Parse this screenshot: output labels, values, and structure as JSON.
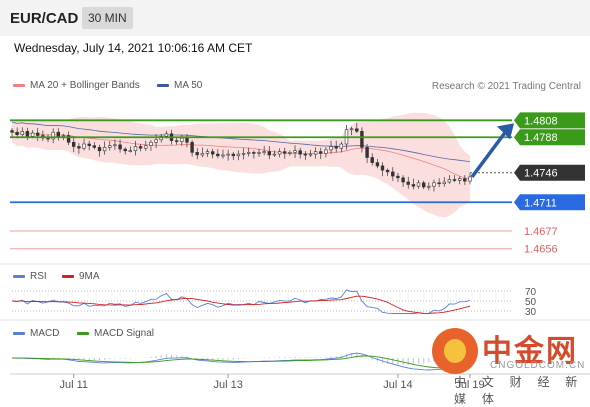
{
  "header": {
    "pair": "EUR/CAD",
    "timeframe": "30 MIN"
  },
  "datetime": "Wednesday, July 14, 2021 10:06:16 AM CET",
  "credit": "Research © 2021 Trading Central",
  "watermark": {
    "title": "中金网",
    "url": "CNGOLDCOM.CN",
    "sub": "中 文 财 经 新 媒 体"
  },
  "colors": {
    "resistance": "#3a9a1a",
    "support": "#2a6ae0",
    "pivot": "#333333",
    "lower": "#e06060",
    "bollinger": "#f6b8b8",
    "ma20": "#f08080",
    "ma50": "#5566a0",
    "arrow": "#2a5aa8",
    "rsi": "#5b7fd8",
    "rsi_ma": "#d02020",
    "macd": "#5b7fd8",
    "macd_signal": "#3a9a1a"
  },
  "chart_data": [
    {
      "type": "candlestick",
      "title": "EUR/CAD",
      "legend": [
        {
          "label": "MA 20 + Bollinger Bands",
          "color": "#f08080"
        },
        {
          "label": "MA 50",
          "color": "#3a5a9a"
        }
      ],
      "x_ticks": [
        {
          "label": "Jul 11",
          "index": 12
        },
        {
          "label": "Jul 13",
          "index": 42
        },
        {
          "label": "Jul 14",
          "index": 75
        },
        {
          "label": "Jul 19",
          "index": 89
        }
      ],
      "ylim": [
        1.4645,
        1.4838
      ],
      "close": [
        1.4794,
        1.4791,
        1.4795,
        1.4789,
        1.4793,
        1.479,
        1.4787,
        1.4786,
        1.4794,
        1.4789,
        1.479,
        1.4782,
        1.4777,
        1.4775,
        1.478,
        1.4778,
        1.4776,
        1.4772,
        1.4776,
        1.4778,
        1.4779,
        1.4774,
        1.4772,
        1.4772,
        1.4777,
        1.4775,
        1.4778,
        1.4782,
        1.4785,
        1.4789,
        1.4792,
        1.4784,
        1.4783,
        1.4787,
        1.4782,
        1.477,
        1.4767,
        1.4769,
        1.4771,
        1.4768,
        1.4766,
        1.4767,
        1.4768,
        1.4766,
        1.4768,
        1.4769,
        1.477,
        1.4769,
        1.477,
        1.4771,
        1.4767,
        1.4768,
        1.4771,
        1.4769,
        1.477,
        1.4772,
        1.4768,
        1.4767,
        1.4768,
        1.4771,
        1.4769,
        1.4773,
        1.4777,
        1.4775,
        1.478,
        1.4797,
        1.4798,
        1.4795,
        1.4776,
        1.4764,
        1.4758,
        1.4754,
        1.4749,
        1.4747,
        1.4742,
        1.474,
        1.4735,
        1.4732,
        1.473,
        1.4734,
        1.4729,
        1.473,
        1.4734,
        1.4733,
        1.4735,
        1.4738,
        1.4737,
        1.4739,
        1.4736,
        1.4741
      ],
      "levels": [
        {
          "label": "1.4808",
          "value": 1.4808,
          "kind": "resistance"
        },
        {
          "label": "1.4788",
          "value": 1.4788,
          "kind": "resistance"
        },
        {
          "label": "1.4746",
          "value": 1.4746,
          "kind": "pivot"
        },
        {
          "label": "1.4711",
          "value": 1.4711,
          "kind": "support"
        },
        {
          "label": "1.4677",
          "value": 1.4677,
          "kind": "lower"
        },
        {
          "label": "1.4656",
          "value": 1.4656,
          "kind": "lower"
        }
      ]
    },
    {
      "type": "line",
      "legend": [
        {
          "label": "RSI",
          "color": "#5b7fd8"
        },
        {
          "label": "9MA",
          "color": "#d02020"
        }
      ],
      "y_ticks": [
        "70",
        "50",
        "30"
      ],
      "ylim": [
        20,
        80
      ]
    },
    {
      "type": "line",
      "legend": [
        {
          "label": "MACD",
          "color": "#5b7fd8"
        },
        {
          "label": "MACD Signal",
          "color": "#3a9a1a"
        }
      ]
    }
  ]
}
